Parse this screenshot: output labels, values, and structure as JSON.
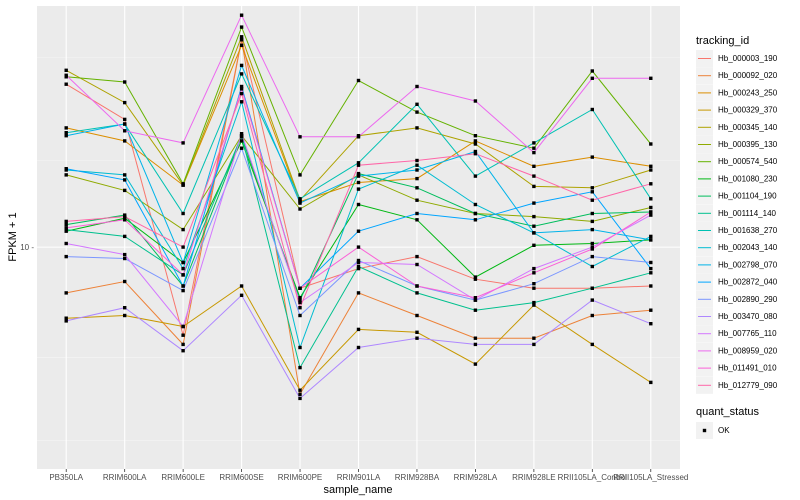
{
  "chart_data": {
    "type": "line",
    "xlabel": "sample_name",
    "ylabel": "FPKM + 1",
    "y_scale": "log10",
    "ylim": [
      3.0,
      37.0
    ],
    "y_ticks": [
      10
    ],
    "y_tick_labels": [
      "10 -"
    ],
    "grid": true,
    "legend_position": "right",
    "legend_title": "tracking_id",
    "shape_legend_title": "quant_status",
    "shape_legend_items": [
      "OK"
    ],
    "categories": [
      "PB350LA",
      "RRIM600LA",
      "RRIM600LE",
      "RRIM600SE",
      "RRIM600PE",
      "RRIM901LA",
      "RRIM928BA",
      "RRIM928LA",
      "RRIM928LE",
      "RRII105LA_Control",
      "RRII105LA_Stressed"
    ],
    "category_labels": [
      "PB350LA",
      "RRIM600LA",
      "RRIM600LE",
      "RRIM600SE",
      "RRIM600PE",
      "RRIM901LA",
      "RRIM928BA",
      "RRIM928LA",
      "RRIM928LE",
      "RRII105LA_Control",
      "RRII105LA_Stressed"
    ],
    "series": [
      {
        "name": "Hb_000003_190",
        "color": "#F8766D",
        "values": [
          24.2,
          20.0,
          6.2,
          30.9,
          8.0,
          8.9,
          9.5,
          8.4,
          8.0,
          8.0,
          8.1
        ]
      },
      {
        "name": "Hb_000092_020",
        "color": "#EC8239",
        "values": [
          7.8,
          8.3,
          5.9,
          30.8,
          4.5,
          7.8,
          6.9,
          6.1,
          6.1,
          6.9,
          7.1
        ]
      },
      {
        "name": "Hb_000243_250",
        "color": "#DB8E00",
        "values": [
          19.1,
          17.8,
          14.0,
          29.9,
          12.8,
          14.2,
          14.5,
          17.8,
          15.5,
          16.3,
          15.5
        ]
      },
      {
        "name": "Hb_000329_370",
        "color": "#C79800",
        "values": [
          6.8,
          6.9,
          6.5,
          8.1,
          4.6,
          6.4,
          6.3,
          5.3,
          7.3,
          5.9,
          4.8
        ]
      },
      {
        "name": "Hb_000345_140",
        "color": "#AEA200",
        "values": [
          26.1,
          21.9,
          14.0,
          31.3,
          12.9,
          18.3,
          19.1,
          17.5,
          13.9,
          13.8,
          15.2
        ]
      },
      {
        "name": "Hb_000395_130",
        "color": "#8FAA00",
        "values": [
          14.8,
          13.6,
          11.0,
          18.3,
          12.3,
          14.8,
          12.9,
          12.0,
          11.8,
          11.5,
          12.4
        ]
      },
      {
        "name": "Hb_000574_540",
        "color": "#64B200",
        "values": [
          25.2,
          24.5,
          14.1,
          33.0,
          14.8,
          24.7,
          20.8,
          18.3,
          17.1,
          26.0,
          17.5
        ]
      },
      {
        "name": "Hb_001080_230",
        "color": "#00B813",
        "values": [
          10.9,
          11.7,
          9.2,
          17.8,
          7.6,
          12.6,
          11.6,
          8.5,
          10.1,
          10.2,
          10.4
        ]
      },
      {
        "name": "Hb_001104_190",
        "color": "#00BD5C",
        "values": [
          11.3,
          11.9,
          8.1,
          18.2,
          7.5,
          14.9,
          13.8,
          12.0,
          11.2,
          12.0,
          12.1
        ]
      },
      {
        "name": "Hb_001114_140",
        "color": "#00C08E",
        "values": [
          11.0,
          10.6,
          8.6,
          18.3,
          5.2,
          9.0,
          7.8,
          7.1,
          7.4,
          8.0,
          8.7
        ]
      },
      {
        "name": "Hb_001638_270",
        "color": "#00C1B2",
        "values": [
          18.6,
          19.5,
          12.0,
          25.6,
          13.0,
          15.8,
          21.7,
          14.7,
          17.6,
          21.1,
          13.0
        ]
      },
      {
        "name": "Hb_002043_140",
        "color": "#00BCD1",
        "values": [
          15.2,
          14.8,
          8.9,
          22.0,
          5.8,
          13.7,
          15.6,
          12.6,
          10.8,
          9.0,
          10.6
        ]
      },
      {
        "name": "Hb_002798_070",
        "color": "#00B3E9",
        "values": [
          18.3,
          19.5,
          9.2,
          26.8,
          12.7,
          14.7,
          15.2,
          16.8,
          10.8,
          11.0,
          10.4
        ]
      },
      {
        "name": "Hb_002872_040",
        "color": "#00A5FF",
        "values": [
          15.3,
          14.4,
          8.1,
          23.9,
          8.0,
          10.9,
          12.0,
          11.6,
          12.7,
          13.5,
          8.9
        ]
      },
      {
        "name": "Hb_002890_290",
        "color": "#7B96FF",
        "values": [
          9.5,
          9.4,
          7.9,
          17.1,
          6.9,
          9.3,
          8.1,
          7.5,
          8.2,
          9.5,
          9.2
        ]
      },
      {
        "name": "Hb_003470_080",
        "color": "#AE87FF",
        "values": [
          6.7,
          7.2,
          5.7,
          7.7,
          4.4,
          5.8,
          6.1,
          5.9,
          5.9,
          7.5,
          6.6
        ]
      },
      {
        "name": "Hb_007765_110",
        "color": "#D377FF",
        "values": [
          10.2,
          9.6,
          6.5,
          18.5,
          7.4,
          9.2,
          9.1,
          7.5,
          8.9,
          10.0,
          11.9
        ]
      },
      {
        "name": "Hb_008959_020",
        "color": "#EC69EF",
        "values": [
          25.4,
          18.8,
          17.6,
          35.2,
          18.2,
          18.2,
          23.9,
          22.1,
          16.7,
          25.0,
          25.0
        ]
      },
      {
        "name": "Hb_011491_010",
        "color": "#FB61D7",
        "values": [
          11.1,
          11.6,
          8.6,
          23.6,
          8.0,
          10.0,
          8.1,
          7.6,
          8.7,
          9.9,
          12.1
        ]
      },
      {
        "name": "Hb_012779_090",
        "color": "#FF66A8",
        "values": [
          11.5,
          11.8,
          10.0,
          23.0,
          7.2,
          15.6,
          16.0,
          16.6,
          14.7,
          12.9,
          14.1
        ]
      }
    ]
  }
}
